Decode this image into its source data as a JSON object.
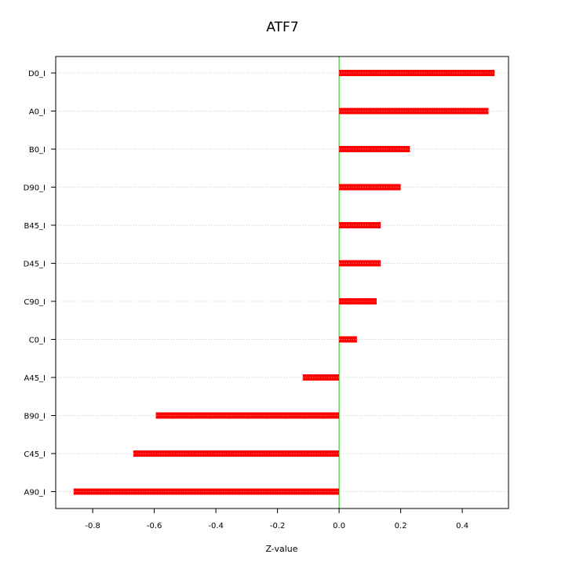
{
  "chart_data": {
    "type": "bar",
    "orientation": "horizontal",
    "title": "ATF7",
    "xlabel": "Z-value",
    "ylabel": "",
    "xlim": [
      -0.92,
      0.55
    ],
    "x_ticks": [
      -0.8,
      -0.6,
      -0.4,
      -0.2,
      0.0,
      0.2,
      0.4
    ],
    "x_tick_labels": [
      "-0.8",
      "-0.6",
      "-0.4",
      "-0.2",
      "0.0",
      "0.2",
      "0.4"
    ],
    "categories": [
      "D0_I",
      "A0_I",
      "B0_I",
      "D90_I",
      "B45_I",
      "D45_I",
      "C90_I",
      "C0_I",
      "A45_I",
      "B90_I",
      "C45_I",
      "A90_I"
    ],
    "values": [
      0.505,
      0.485,
      0.23,
      0.2,
      0.135,
      0.135,
      0.122,
      0.058,
      -0.118,
      -0.595,
      -0.668,
      -0.862
    ],
    "bar_color": "#ff0000",
    "reference_line": {
      "x": 0,
      "color": "#00cc00"
    },
    "grid": "horizontal dotted",
    "legend": "none"
  }
}
